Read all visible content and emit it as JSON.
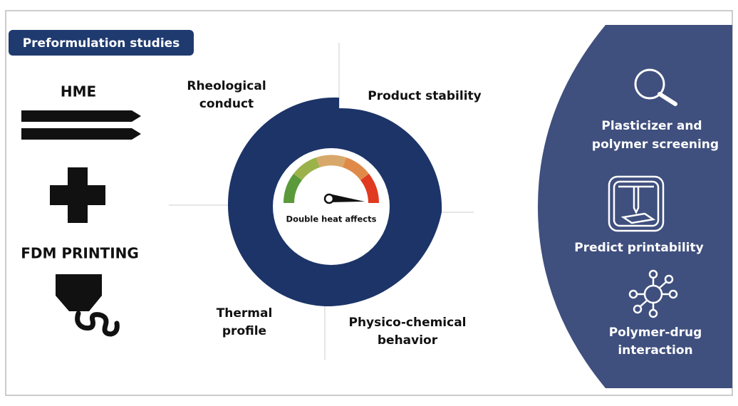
{
  "header": {
    "title": "Preformulation studies"
  },
  "left": {
    "top": "HME",
    "bottom": "FDM PRINTING"
  },
  "center": {
    "label": "Double heat affects"
  },
  "quadrants": [
    {
      "lines": [
        "Rheological",
        "conduct"
      ]
    },
    {
      "lines": [
        "Product stability"
      ]
    },
    {
      "lines": [
        "Thermal",
        "profile"
      ]
    },
    {
      "lines": [
        "Physico-chemical",
        "behavior"
      ]
    }
  ],
  "panel": [
    {
      "lines": [
        "Plasticizer and",
        "polymer screening"
      ]
    },
    {
      "lines": [
        "Predict printability"
      ]
    },
    {
      "lines": [
        "Polymer-drug",
        "interaction"
      ]
    }
  ]
}
